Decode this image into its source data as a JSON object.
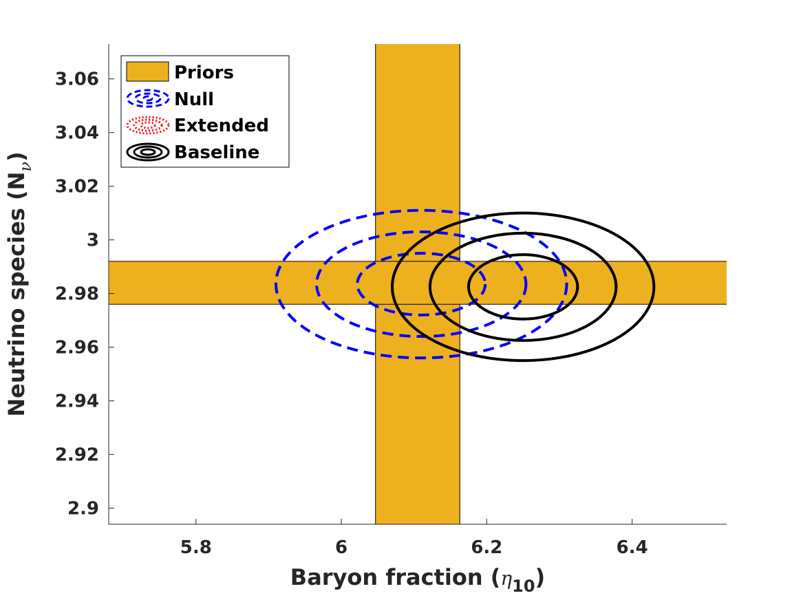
{
  "chart_data": {
    "type": "contour",
    "xlabel": {
      "main": "Baryon fraction (",
      "symbol": "η",
      "subscript": "10",
      "close": ")"
    },
    "ylabel": {
      "main": "Neutrino species (N",
      "subscript": "ν",
      "close": ")"
    },
    "xlim": [
      5.68,
      6.53
    ],
    "ylim": [
      2.894,
      3.073
    ],
    "xticks": [
      5.8,
      6.0,
      6.2,
      6.4
    ],
    "xtick_labels": [
      "5.8",
      "6",
      "6.2",
      "6.4"
    ],
    "yticks": [
      2.9,
      2.92,
      2.94,
      2.96,
      2.98,
      3.0,
      3.02,
      3.04,
      3.06
    ],
    "ytick_labels": [
      "2.9",
      "2.92",
      "2.94",
      "2.96",
      "2.98",
      "3",
      "3.02",
      "3.04",
      "3.06"
    ],
    "grid": false,
    "legend_position": "top-left",
    "priors": {
      "color": "#edb120",
      "vertical_band_x": [
        6.047,
        6.163
      ],
      "horizontal_band_y": [
        2.976,
        2.992
      ]
    },
    "series": [
      {
        "name": "Null",
        "style": "dashed",
        "color": "#0000ff",
        "center": [
          6.11,
          2.9835
        ],
        "contours": [
          {
            "rx": 0.088,
            "ry": 0.0115
          },
          {
            "rx": 0.144,
            "ry": 0.0195
          },
          {
            "rx": 0.2,
            "ry": 0.0275
          }
        ]
      },
      {
        "name": "Extended",
        "style": "dotted",
        "color": "#ff0000",
        "center": [
          6.25,
          2.9825
        ],
        "contours": [
          {
            "rx": 0.075,
            "ry": 0.012
          },
          {
            "rx": 0.128,
            "ry": 0.02
          },
          {
            "rx": 0.18,
            "ry": 0.0275
          }
        ]
      },
      {
        "name": "Baseline",
        "style": "solid",
        "color": "#000000",
        "center": [
          6.25,
          2.9825
        ],
        "contours": [
          {
            "rx": 0.075,
            "ry": 0.012
          },
          {
            "rx": 0.128,
            "ry": 0.02
          },
          {
            "rx": 0.18,
            "ry": 0.0275
          }
        ]
      }
    ],
    "legend": [
      "Priors",
      "Null",
      "Extended",
      "Baseline"
    ]
  }
}
